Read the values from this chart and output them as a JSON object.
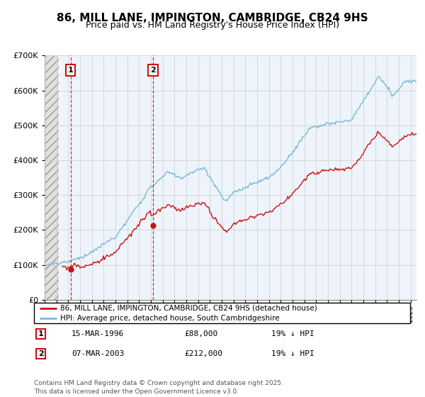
{
  "title": "86, MILL LANE, IMPINGTON, CAMBRIDGE, CB24 9HS",
  "subtitle": "Price paid vs. HM Land Registry's House Price Index (HPI)",
  "footnote": "Contains HM Land Registry data © Crown copyright and database right 2025.\nThis data is licensed under the Open Government Licence v3.0.",
  "legend_line1": "86, MILL LANE, IMPINGTON, CAMBRIDGE, CB24 9HS (detached house)",
  "legend_line2": "HPI: Average price, detached house, South Cambridgeshire",
  "sale1_label": "1",
  "sale1_date": "15-MAR-1996",
  "sale1_price": "£88,000",
  "sale1_hpi": "19% ↓ HPI",
  "sale1_year": 1996.21,
  "sale1_value": 88000,
  "sale2_label": "2",
  "sale2_date": "07-MAR-2003",
  "sale2_price": "£212,000",
  "sale2_hpi": "19% ↓ HPI",
  "sale2_year": 2003.18,
  "sale2_value": 212000,
  "xmin": 1994,
  "xmax": 2025.5,
  "ymin": 0,
  "ymax": 700000,
  "hatch_end": 1995.2,
  "color_property": "#cc1111",
  "color_hpi": "#7ab8d9",
  "color_hatch_bg": "#e8e8e8",
  "color_chart_bg": "#eef4fb",
  "grid_color": "#cccccc",
  "annotation_box_color": "#cc1111",
  "title_fontsize": 11,
  "subtitle_fontsize": 9
}
